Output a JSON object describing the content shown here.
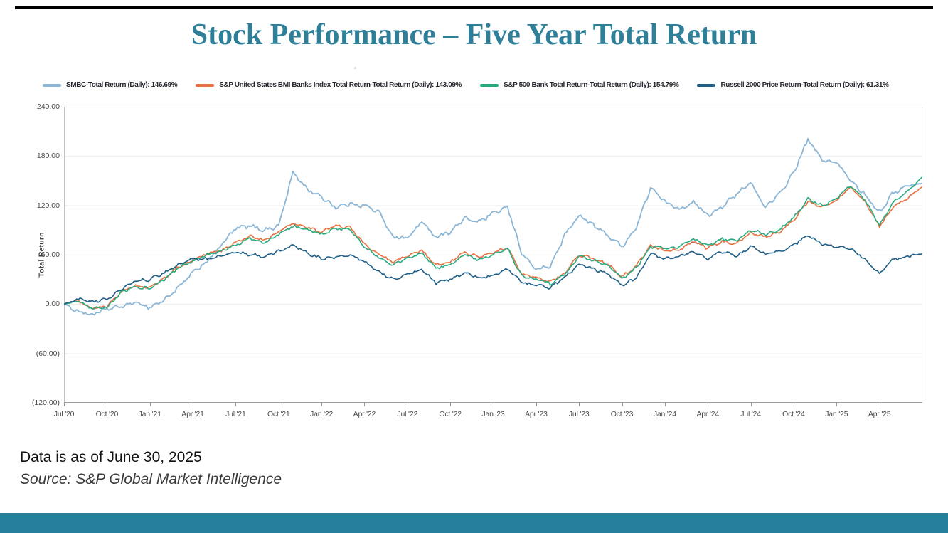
{
  "page": {
    "title": "Stock Performance – Five Year Total Return",
    "footnote_date": "Data is as of June 30, 2025",
    "footnote_source": "Source: S&P Global Market Intelligence",
    "accent_color": "#26809d",
    "title_color": "#2f7f99"
  },
  "chart_data": {
    "type": "line",
    "title": "",
    "xlabel": "",
    "ylabel": "Total Return",
    "ylim": [
      -120,
      240
    ],
    "grid": true,
    "legend_position": "top",
    "y_ticks": [
      240,
      180,
      120,
      60,
      0,
      -60,
      -120
    ],
    "y_tick_labels": [
      "240.00",
      "180.00",
      "120.00",
      "60.00",
      "0.00",
      "(60.00)",
      "(120.00)"
    ],
    "x_tick_labels": [
      "Jul '20",
      "Oct '20",
      "Jan '21",
      "Apr '21",
      "Jul '21",
      "Oct '21",
      "Jan '22",
      "Apr '22",
      "Jul '22",
      "Oct '22",
      "Jan '23",
      "Apr '23",
      "Jul '23",
      "Oct '23",
      "Jan '24",
      "Apr '24",
      "Jul '24",
      "Oct '24",
      "Jan '25",
      "Apr '25"
    ],
    "x_months_total": 60,
    "x_months_per_tick": 3,
    "series": [
      {
        "name": "SMBC-Total Return (Daily): 146.69%",
        "color": "#8cb6d6",
        "final_value": 146.69,
        "monthly_values": [
          0,
          -9,
          -13,
          -6,
          -3,
          2,
          -4,
          5,
          20,
          38,
          52,
          72,
          92,
          95,
          90,
          95,
          160,
          140,
          130,
          118,
          122,
          120,
          112,
          82,
          80,
          100,
          82,
          88,
          104,
          100,
          110,
          118,
          62,
          42,
          46,
          84,
          108,
          96,
          84,
          70,
          93,
          142,
          124,
          116,
          124,
          108,
          119,
          133,
          148,
          118,
          133,
          160,
          200,
          175,
          172,
          150,
          133,
          112,
          136,
          144,
          146.69
        ]
      },
      {
        "name": "S&P United States BMI Banks Index Total Return-Total Return (Daily): 143.09%",
        "color": "#e7703f",
        "final_value": 143.09,
        "monthly_values": [
          0,
          4,
          -5,
          -3,
          15,
          22,
          20,
          31,
          45,
          53,
          61,
          65,
          75,
          83,
          77,
          88,
          98,
          93,
          88,
          95,
          93,
          73,
          60,
          51,
          58,
          65,
          47,
          51,
          63,
          57,
          63,
          69,
          36,
          32,
          27,
          38,
          60,
          55,
          49,
          33,
          46,
          72,
          65,
          66,
          76,
          68,
          76,
          74,
          87,
          82,
          87,
          102,
          125,
          118,
          126,
          143,
          124,
          94,
          119,
          129,
          143.09
        ]
      },
      {
        "name": "S&P 500 Bank Total Return-Total Return (Daily): 154.79%",
        "color": "#28ab80",
        "final_value": 154.79,
        "monthly_values": [
          0,
          3,
          -6,
          -4,
          14,
          21,
          19,
          30,
          44,
          52,
          60,
          64,
          72,
          80,
          74,
          85,
          95,
          90,
          85,
          92,
          90,
          70,
          57,
          48,
          55,
          62,
          44,
          48,
          60,
          54,
          60,
          67,
          34,
          30,
          25,
          36,
          58,
          53,
          47,
          31,
          44,
          70,
          68,
          69,
          79,
          71,
          79,
          77,
          90,
          85,
          90,
          105,
          128,
          120,
          128,
          145,
          126,
          96,
          125,
          138,
          154.79
        ]
      },
      {
        "name": "Russell 2000 Price Return-Total Return (Daily): 61.31%",
        "color": "#1f5e87",
        "final_value": 61.31,
        "monthly_values": [
          0,
          6,
          3,
          6,
          18,
          28,
          30,
          38,
          48,
          55,
          55,
          58,
          63,
          60,
          58,
          64,
          72,
          62,
          55,
          57,
          60,
          52,
          40,
          30,
          36,
          42,
          26,
          30,
          38,
          32,
          34,
          43,
          26,
          23,
          20,
          32,
          49,
          43,
          37,
          23,
          32,
          61,
          55,
          58,
          64,
          55,
          64,
          58,
          70,
          61,
          64,
          72,
          84,
          72,
          70,
          67,
          55,
          37,
          55,
          58,
          61.31
        ]
      }
    ]
  }
}
